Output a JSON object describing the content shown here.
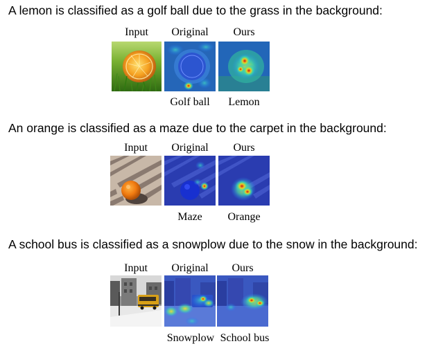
{
  "examples": [
    {
      "caption": "A lemon is classified as a golf ball due to the grass in the background:",
      "columns": [
        "Input",
        "Original",
        "Ours"
      ],
      "predictions": {
        "original": "Golf ball",
        "ours": "Lemon"
      }
    },
    {
      "caption": "An orange is classified as a maze due to the carpet in the background:",
      "columns": [
        "Input",
        "Original",
        "Ours"
      ],
      "predictions": {
        "original": "Maze",
        "ours": "Orange"
      }
    },
    {
      "caption": "A school bus is classified as a snowplow due to the snow in the background:",
      "columns": [
        "Input",
        "Original",
        "Ours"
      ],
      "predictions": {
        "original": "Snowplow",
        "ours": "School bus"
      }
    }
  ]
}
